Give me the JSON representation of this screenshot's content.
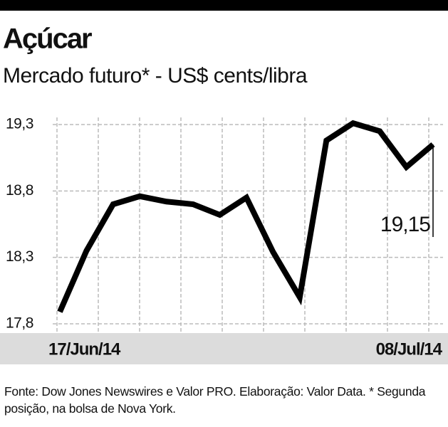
{
  "chart_data": {
    "type": "line",
    "title": "Açúcar",
    "subtitle": "Mercado futuro* - US$ cents/libra",
    "categories": [
      "17/Jun/14",
      null,
      null,
      null,
      null,
      null,
      null,
      null,
      null,
      null,
      null,
      null,
      null,
      null,
      "08/Jul/14"
    ],
    "series": [
      {
        "color": "#000000",
        "values": [
          17.89,
          18.35,
          18.7,
          18.76,
          18.72,
          18.7,
          18.62,
          18.75,
          18.34,
          18.0,
          19.18,
          19.31,
          19.25,
          18.98,
          19.15
        ],
        "value_labels": [
          null,
          null,
          null,
          null,
          null,
          null,
          null,
          null,
          null,
          null,
          null,
          null,
          null,
          null,
          "19,15"
        ]
      }
    ],
    "ylim": [
      17.8,
      19.3
    ],
    "yticks": [
      {
        "value": 17.8,
        "label": "17,8"
      },
      {
        "value": 18.3,
        "label": "18,3"
      },
      {
        "value": 18.8,
        "label": "18,8"
      },
      {
        "value": 19.3,
        "label": "19,3"
      }
    ],
    "grid": true,
    "note": "Fonte: Dow Jones Newswires e Valor PRO. Elaboração: Valor Data. * Segunda posição, na bolsa de Nova York."
  }
}
